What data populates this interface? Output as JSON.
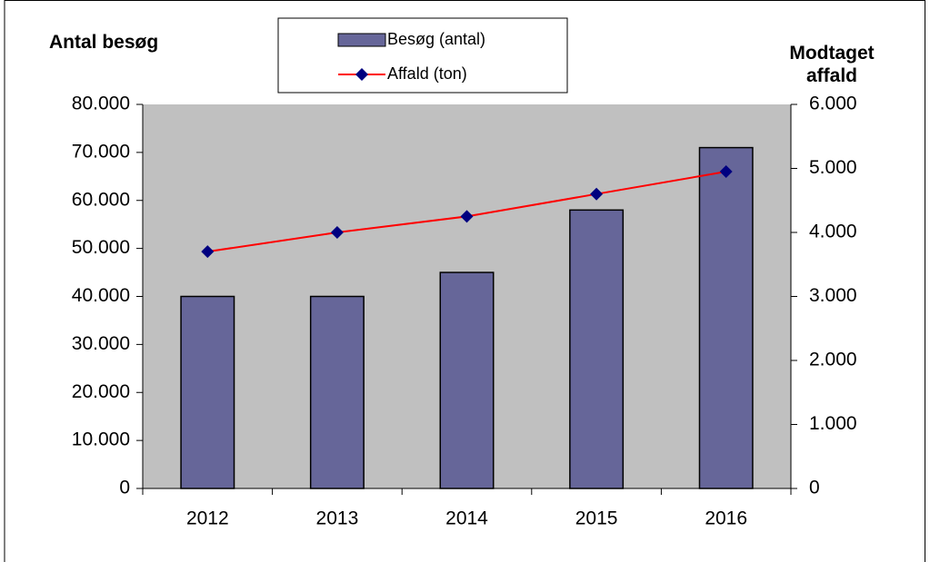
{
  "chart_data": {
    "type": "bar_line",
    "ylabel": "Antal besøg",
    "y2label": "Modtaget affald",
    "categories": [
      "2012",
      "2013",
      "2014",
      "2015",
      "2016"
    ],
    "series": [
      {
        "name": "Besøg (antal)",
        "type": "bar",
        "color": "#666699",
        "values": [
          40000,
          40000,
          45000,
          58000,
          71000
        ]
      },
      {
        "name": "Affald (ton)",
        "type": "line",
        "axis": "y2",
        "color": "#ff0000",
        "marker_color": "#000080",
        "values": [
          3700,
          4000,
          4250,
          4600,
          4950
        ]
      }
    ],
    "ylim": [
      0,
      80000
    ],
    "yticks": [
      0,
      {
        "value": 10000,
        "label": "10.000"
      },
      {
        "value": 20000,
        "label": "20.000"
      },
      {
        "value": 30000,
        "label": "30.000"
      },
      {
        "value": 40000,
        "label": "40.000"
      },
      {
        "value": 50000,
        "label": "50.000"
      },
      {
        "value": 60000,
        "label": "60.000"
      },
      {
        "value": 70000,
        "label": "70.000"
      },
      {
        "value": 80000,
        "label": "80.000"
      }
    ],
    "y2lim": [
      0,
      6000
    ],
    "y2ticks": [
      0,
      {
        "value": 1000,
        "label": "1.000"
      },
      {
        "value": 2000,
        "label": "2.000"
      },
      {
        "value": 3000,
        "label": "3.000"
      },
      {
        "value": 4000,
        "label": "4.000"
      },
      {
        "value": 5000,
        "label": "5.000"
      },
      {
        "value": 6000,
        "label": "6.000"
      }
    ],
    "plot_background": "#c0c0c0",
    "legend": "top"
  }
}
